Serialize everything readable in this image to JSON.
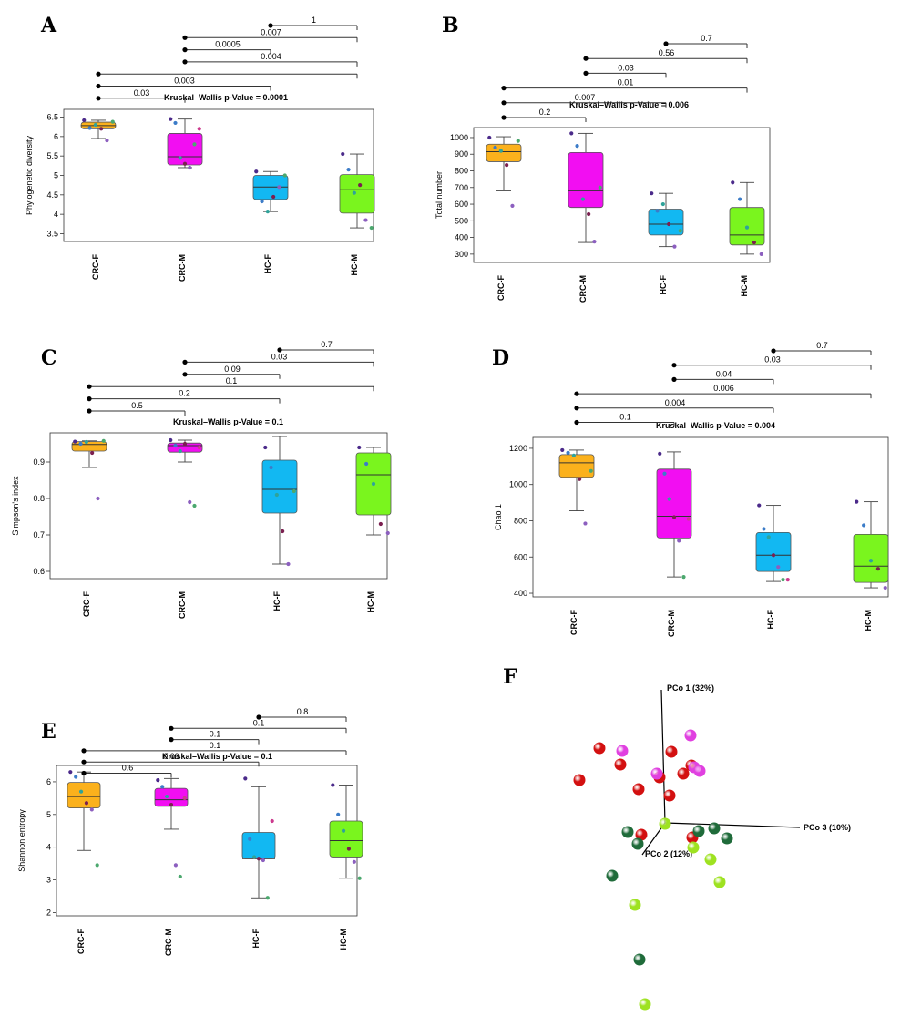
{
  "chart_data": [
    {
      "panel": "A",
      "type": "box",
      "ylabel": "Phylogenetic diversity",
      "annotation": "Kruskal–Wallis p-Value = 0.0001",
      "categories": [
        "CRC-F",
        "CRC-M",
        "HC-F",
        "HC-M"
      ],
      "colors": [
        "#fbb11c",
        "#f20ef2",
        "#12b8f2",
        "#7af51e"
      ],
      "yticks": [
        3.5,
        4.0,
        4.5,
        5.0,
        5.5,
        6.0,
        6.5
      ],
      "ylim": [
        3.3,
        6.7
      ],
      "boxes": [
        {
          "min": 5.95,
          "q1": 6.2,
          "median": 6.28,
          "q3": 6.37,
          "max": 6.42
        },
        {
          "min": 5.2,
          "q1": 5.27,
          "median": 5.48,
          "q3": 6.08,
          "max": 6.45
        },
        {
          "min": 4.07,
          "q1": 4.38,
          "median": 4.7,
          "q3": 5.0,
          "max": 5.1
        },
        {
          "min": 3.65,
          "q1": 4.03,
          "median": 4.63,
          "q3": 5.02,
          "max": 5.55
        }
      ],
      "points": [
        [
          6.42,
          6.22,
          6.3,
          6.2,
          5.9,
          6.38
        ],
        [
          6.45,
          6.35,
          5.45,
          5.3,
          5.2,
          5.8,
          6.2
        ],
        [
          5.1,
          4.33,
          4.07,
          4.45,
          4.7,
          5.0
        ],
        [
          5.55,
          5.15,
          4.55,
          4.75,
          3.85,
          3.65
        ]
      ],
      "brackets": [
        {
          "from": 2,
          "to": 3,
          "label": "1"
        },
        {
          "from": 1,
          "to": 3,
          "label": "0.007"
        },
        {
          "from": 1,
          "to": 2,
          "label": "0.0005"
        },
        {
          "from": 1,
          "to": 3,
          "label": "0.004"
        },
        {
          "from": 0,
          "to": 3,
          "label": ""
        },
        {
          "from": 0,
          "to": 2,
          "label": "0.003"
        },
        {
          "from": 0,
          "to": 1,
          "label": "0.03"
        }
      ]
    },
    {
      "panel": "B",
      "type": "box",
      "ylabel": "Total number",
      "annotation": "Kruskal–Wallis p-Value = 0.006",
      "categories": [
        "CRC-F",
        "CRC-M",
        "HC-F",
        "HC-M"
      ],
      "colors": [
        "#fbb11c",
        "#f20ef2",
        "#12b8f2",
        "#7af51e"
      ],
      "yticks": [
        300,
        400,
        500,
        600,
        700,
        800,
        900,
        1000
      ],
      "ylim": [
        250,
        1060
      ],
      "boxes": [
        {
          "min": 680,
          "q1": 855,
          "median": 915,
          "q3": 960,
          "max": 1005
        },
        {
          "min": 370,
          "q1": 580,
          "median": 680,
          "q3": 910,
          "max": 1025
        },
        {
          "min": 345,
          "q1": 415,
          "median": 480,
          "q3": 570,
          "max": 665
        },
        {
          "min": 300,
          "q1": 355,
          "median": 415,
          "q3": 580,
          "max": 730
        }
      ],
      "points": [
        [
          1000,
          940,
          920,
          835,
          590,
          980
        ],
        [
          1025,
          950,
          630,
          540,
          375,
          700
        ],
        [
          665,
          560,
          600,
          480,
          345,
          440
        ],
        [
          730,
          630,
          460,
          370,
          300
        ]
      ],
      "brackets": [
        {
          "from": 2,
          "to": 3,
          "label": "0.7"
        },
        {
          "from": 1,
          "to": 3,
          "label": "0.56"
        },
        {
          "from": 1,
          "to": 2,
          "label": "0.03"
        },
        {
          "from": 0,
          "to": 3,
          "label": "0.01"
        },
        {
          "from": 0,
          "to": 2,
          "label": "0.007"
        },
        {
          "from": 0,
          "to": 1,
          "label": "0.2"
        }
      ]
    },
    {
      "panel": "C",
      "type": "box",
      "ylabel": "Simpson's index",
      "annotation": "Kruskal–Wallis p-Value = 0.1",
      "categories": [
        "CRC-F",
        "CRC-M",
        "HC-F",
        "HC-M"
      ],
      "colors": [
        "#fbb11c",
        "#f20ef2",
        "#12b8f2",
        "#7af51e"
      ],
      "yticks": [
        0.6,
        0.7,
        0.8,
        0.9
      ],
      "ylim": [
        0.58,
        0.98
      ],
      "boxes": [
        {
          "min": 0.885,
          "q1": 0.93,
          "median": 0.948,
          "q3": 0.956,
          "max": 0.958
        },
        {
          "min": 0.9,
          "q1": 0.927,
          "median": 0.945,
          "q3": 0.952,
          "max": 0.96
        },
        {
          "min": 0.62,
          "q1": 0.76,
          "median": 0.825,
          "q3": 0.905,
          "max": 0.97
        },
        {
          "min": 0.7,
          "q1": 0.755,
          "median": 0.865,
          "q3": 0.925,
          "max": 0.94
        }
      ],
      "points": [
        [
          0.956,
          0.95,
          0.955,
          0.925,
          0.8,
          0.958
        ],
        [
          0.96,
          0.945,
          0.93,
          0.95,
          0.79,
          0.78,
          0.94
        ],
        [
          0.94,
          0.885,
          0.81,
          0.71,
          0.62,
          0.82
        ],
        [
          0.94,
          0.895,
          0.84,
          0.73,
          0.705
        ]
      ],
      "brackets": [
        {
          "from": 2,
          "to": 3,
          "label": "0.7"
        },
        {
          "from": 1,
          "to": 3,
          "label": "0.03"
        },
        {
          "from": 1,
          "to": 2,
          "label": "0.09"
        },
        {
          "from": 0,
          "to": 3,
          "label": "0.1"
        },
        {
          "from": 0,
          "to": 2,
          "label": "0.2"
        },
        {
          "from": 0,
          "to": 1,
          "label": "0.5"
        }
      ]
    },
    {
      "panel": "D",
      "type": "box",
      "ylabel": "Chao 1",
      "annotation": "Kruskal–Wallis p-Value = 0.004",
      "categories": [
        "CRC-F",
        "CRC-M",
        "HC-F",
        "HC-M"
      ],
      "colors": [
        "#fbb11c",
        "#f20ef2",
        "#12b8f2",
        "#7af51e"
      ],
      "yticks": [
        400,
        600,
        800,
        1000,
        1200
      ],
      "ylim": [
        380,
        1260
      ],
      "boxes": [
        {
          "min": 855,
          "q1": 1040,
          "median": 1120,
          "q3": 1165,
          "max": 1190
        },
        {
          "min": 490,
          "q1": 705,
          "median": 825,
          "q3": 1085,
          "max": 1180
        },
        {
          "min": 465,
          "q1": 520,
          "median": 610,
          "q3": 735,
          "max": 885
        },
        {
          "min": 430,
          "q1": 460,
          "median": 550,
          "q3": 725,
          "max": 905
        }
      ],
      "points": [
        [
          1190,
          1175,
          1160,
          1030,
          785,
          1075
        ],
        [
          1170,
          1060,
          920,
          820,
          690,
          490,
          810
        ],
        [
          885,
          755,
          710,
          610,
          545,
          475,
          475
        ],
        [
          905,
          775,
          580,
          535,
          430
        ]
      ],
      "brackets": [
        {
          "from": 2,
          "to": 3,
          "label": "0.7"
        },
        {
          "from": 1,
          "to": 3,
          "label": "0.03"
        },
        {
          "from": 1,
          "to": 2,
          "label": "0.04"
        },
        {
          "from": 0,
          "to": 3,
          "label": "0.006"
        },
        {
          "from": 0,
          "to": 2,
          "label": "0.004"
        },
        {
          "from": 0,
          "to": 1,
          "label": "0.1"
        }
      ]
    },
    {
      "panel": "E",
      "type": "box",
      "ylabel": "Shannon entropy",
      "annotation": "Kruskal–Wallis p-Value = 0.1",
      "categories": [
        "CRC-F",
        "CRC-M",
        "HC-F",
        "HC-M"
      ],
      "colors": [
        "#fbb11c",
        "#f20ef2",
        "#12b8f2",
        "#7af51e"
      ],
      "yticks": [
        2,
        3,
        4,
        5,
        6
      ],
      "ylim": [
        1.9,
        6.5
      ],
      "boxes": [
        {
          "min": 3.9,
          "q1": 5.2,
          "median": 5.55,
          "q3": 5.98,
          "max": 6.3
        },
        {
          "min": 4.55,
          "q1": 5.25,
          "median": 5.45,
          "q3": 5.8,
          "max": 6.1
        },
        {
          "min": 2.45,
          "q1": 3.65,
          "median": 3.65,
          "q3": 4.45,
          "max": 5.85
        },
        {
          "min": 3.05,
          "q1": 3.7,
          "median": 4.2,
          "q3": 4.8,
          "max": 5.9
        }
      ],
      "points": [
        [
          6.3,
          6.15,
          5.7,
          5.35,
          5.15,
          3.45
        ],
        [
          6.05,
          5.85,
          5.55,
          5.3,
          3.45,
          3.1,
          5.5
        ],
        [
          6.1,
          4.25,
          3.7,
          3.65,
          3.6,
          2.45,
          4.8
        ],
        [
          5.9,
          5.0,
          4.5,
          3.95,
          3.55,
          3.05
        ]
      ],
      "brackets": [
        {
          "from": 2,
          "to": 3,
          "label": "0.8"
        },
        {
          "from": 1,
          "to": 3,
          "label": "0.1"
        },
        {
          "from": 1,
          "to": 2,
          "label": "0.1"
        },
        {
          "from": 0,
          "to": 3,
          "label": "0.1"
        },
        {
          "from": 0,
          "to": 2,
          "label": "0.09"
        },
        {
          "from": 0,
          "to": 1,
          "label": "0.6"
        }
      ]
    },
    {
      "panel": "F",
      "type": "scatter",
      "axis_labels": [
        "PCo 1 (32%)",
        "PCo 3 (10%)",
        "PCo 2 (12%)"
      ]
    }
  ]
}
